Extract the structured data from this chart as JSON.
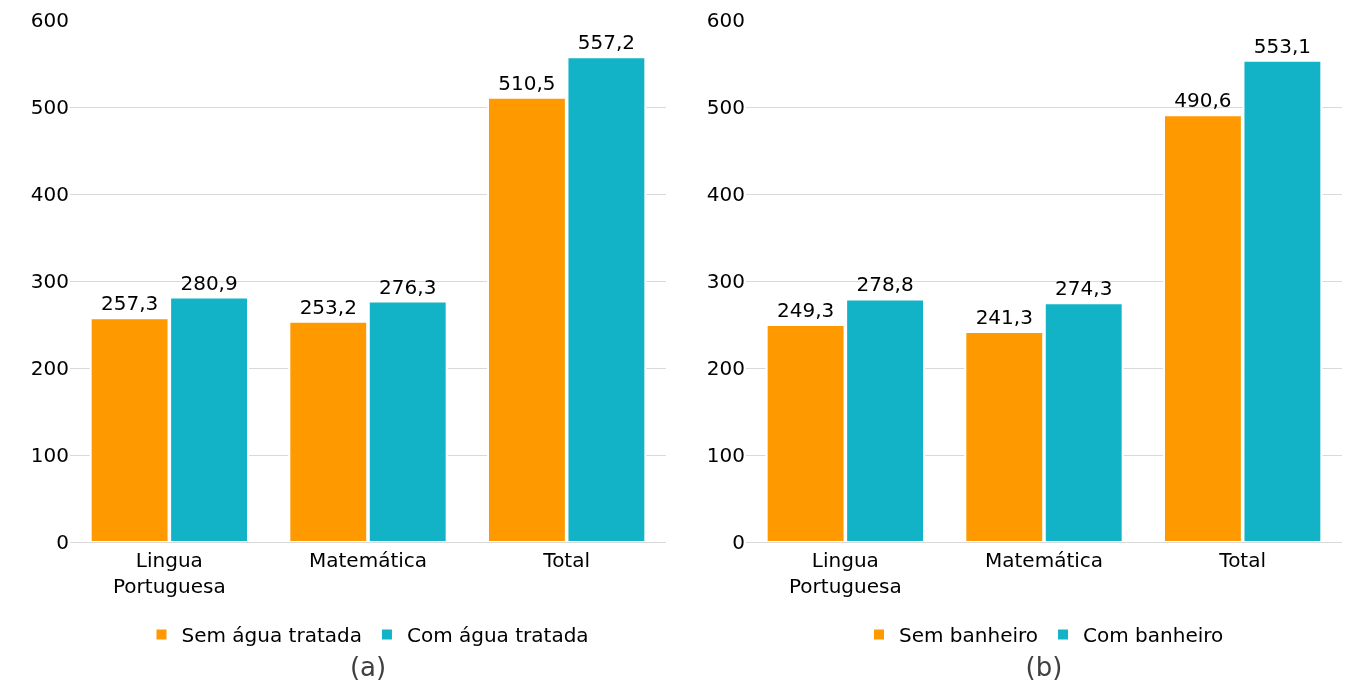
{
  "chart_data": [
    {
      "type": "bar",
      "xlabel": "(a)",
      "categories": [
        "Lingua\nPortuguesa",
        "Matemática",
        "Total"
      ],
      "series": [
        {
          "name": "Sem água tratada",
          "color": "#ff9900",
          "values": [
            257.3,
            253.2,
            510.5
          ],
          "value_labels": [
            "257,3",
            "253,2",
            "510,5"
          ]
        },
        {
          "name": "Com água tratada",
          "color": "#12b3c7",
          "values": [
            280.9,
            276.3,
            557.2
          ],
          "value_labels": [
            "280,9",
            "276,3",
            "557,2"
          ]
        }
      ],
      "ylim": [
        0,
        600
      ],
      "yticks": [
        0,
        100,
        200,
        300,
        400,
        500,
        600
      ],
      "grid": "y",
      "legend": "bottom"
    },
    {
      "type": "bar",
      "xlabel": "(b)",
      "categories": [
        "Lingua\nPortuguesa",
        "Matemática",
        "Total"
      ],
      "series": [
        {
          "name": "Sem banheiro",
          "color": "#ff9900",
          "values": [
            249.3,
            241.3,
            490.6
          ],
          "value_labels": [
            "249,3",
            "241,3",
            "490,6"
          ]
        },
        {
          "name": "Com banheiro",
          "color": "#12b3c7",
          "values": [
            278.8,
            274.3,
            553.1
          ],
          "value_labels": [
            "278,8",
            "274,3",
            "553,1"
          ]
        }
      ],
      "ylim": [
        0,
        600
      ],
      "yticks": [
        0,
        100,
        200,
        300,
        400,
        500,
        600
      ],
      "grid": "y",
      "legend": "bottom"
    }
  ]
}
